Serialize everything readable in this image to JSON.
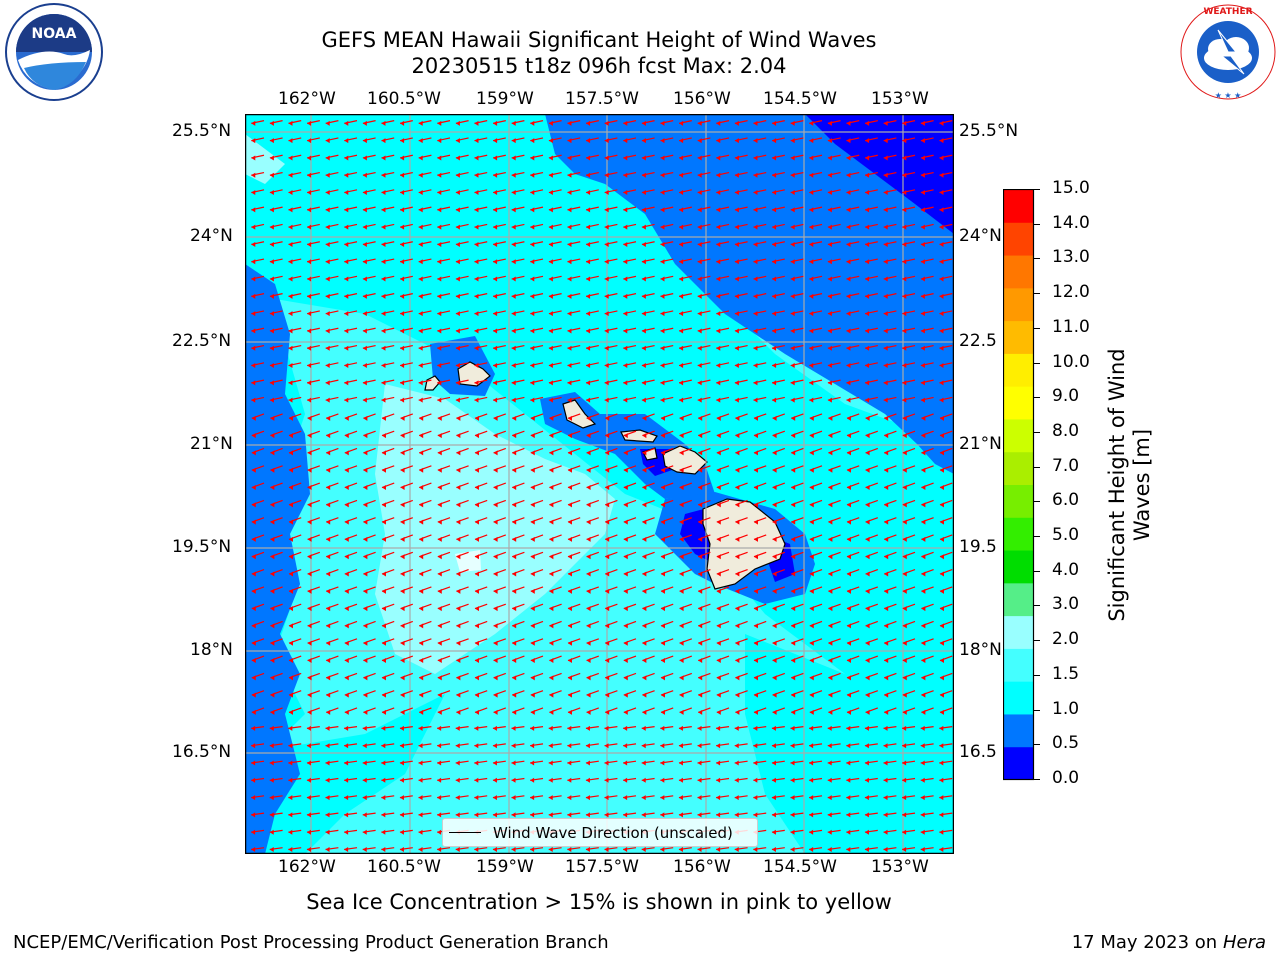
{
  "header": {
    "title_line1": "GEFS MEAN Hawaii Significant Height of Wind Waves",
    "title_line2": "20230515 t18z 096h fcst   Max: 2.04"
  },
  "logos": {
    "left": {
      "icon": "noaa-logo",
      "text": "NOAA",
      "ring_text": "NATIONAL OCEANIC AND ATMOSPHERIC ADMINISTRATION · U.S. DEPARTMENT OF COMMERCE"
    },
    "right": {
      "icon": "national-weather-service-logo",
      "ring_text": "NATIONAL WEATHER SERVICE"
    }
  },
  "map": {
    "lon_labels": [
      "162°W",
      "160.5°W",
      "159°W",
      "157.5°W",
      "156°W",
      "154.5°W",
      "153°W"
    ],
    "lat_labels": [
      "25.5°N",
      "24°N",
      "22.5°N",
      "21°N",
      "19.5°N",
      "18°N",
      "16.5°N"
    ],
    "lat_labels_right": [
      "25.5°N",
      "24°N",
      "22.5",
      "21°N",
      "19.5",
      "18°N",
      "16.5"
    ],
    "legend_label": "Wind Wave Direction (unscaled)",
    "arrow_color": "#ff0000",
    "land_color": "#f0ecdc"
  },
  "colorbar": {
    "label": "Significant Height of Wind Waves [m]",
    "ticks": [
      "15.0",
      "14.0",
      "13.0",
      "12.0",
      "11.0",
      "10.0",
      "9.0",
      "8.0",
      "7.0",
      "6.0",
      "5.0",
      "4.0",
      "3.0",
      "2.0",
      "1.5",
      "1.0",
      "0.5",
      "0.0"
    ],
    "colors_bottom_to_top": [
      "#0000ff",
      "#0077ff",
      "#00ffff",
      "#44ffff",
      "#99ffff",
      "#55ee88",
      "#00dd00",
      "#33ee00",
      "#77ee00",
      "#aaee00",
      "#ccff00",
      "#ffff00",
      "#ffee00",
      "#ffbb00",
      "#ff9900",
      "#ff7700",
      "#ff4400",
      "#ff0000"
    ]
  },
  "footer": {
    "note": "Sea Ice Concentration > 15% is shown in pink to yellow",
    "left": "NCEP/EMC/Verification Post Processing Product Generation Branch",
    "right_date": "17 May 2023 on",
    "right_machine": "Hera"
  }
}
